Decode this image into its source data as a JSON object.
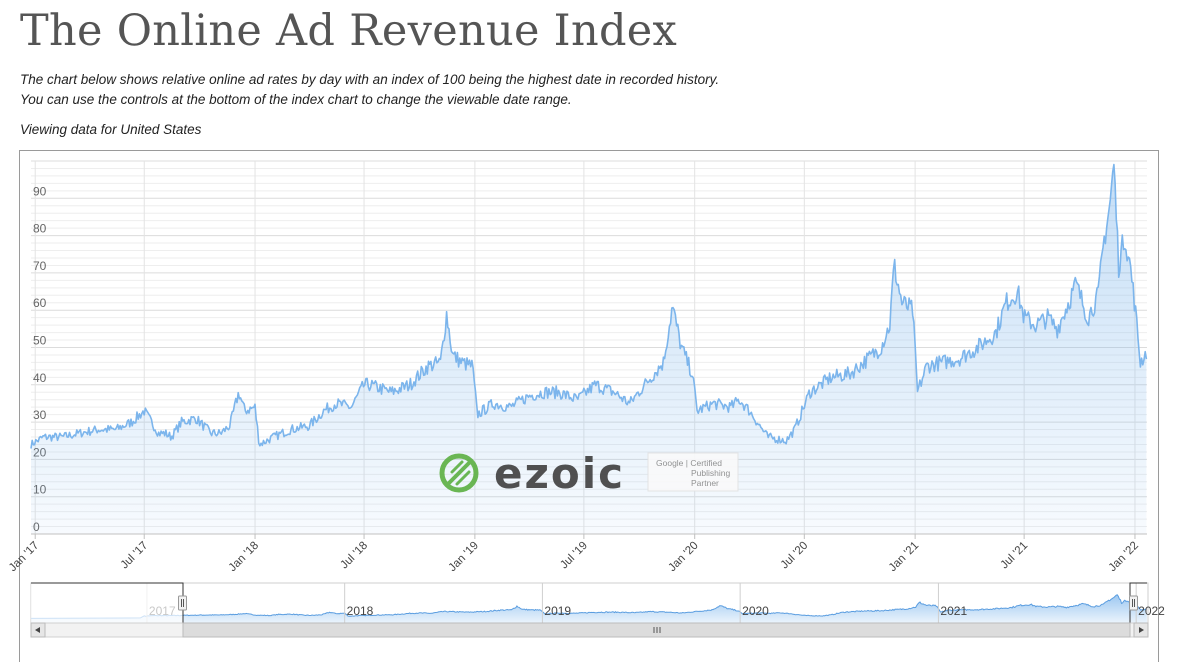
{
  "page": {
    "title": "The Online Ad Revenue Index",
    "description_line1": "The chart below shows relative online ad rates by day with an index of 100 being the highest date in recorded history.",
    "description_line2": "You can use the controls at the bottom of the index chart to change the viewable date range.",
    "viewing": "Viewing data for United States"
  },
  "watermark": {
    "logo_text": "ezoic",
    "badge_line1": "Google | Certified",
    "badge_line2": "Publishing",
    "badge_line3": "Partner"
  },
  "navigator": {
    "year_labels": [
      "2017",
      "2018",
      "2019",
      "2020",
      "2021",
      "2022"
    ],
    "left_arrow_icon": "chevron-left-icon",
    "right_arrow_icon": "chevron-right-icon",
    "grip_icon": "grip-icon"
  },
  "colors": {
    "line": "#7cb5ec",
    "grid": "#e6e6e6",
    "navigator_fill": "#a7c6ef"
  },
  "chart_data": {
    "type": "area",
    "title": "",
    "xlabel": "",
    "ylabel": "",
    "ylim": [
      0,
      100
    ],
    "yticks": [
      0,
      10,
      20,
      30,
      40,
      50,
      60,
      70,
      80,
      90
    ],
    "xticks": [
      "Jan '17",
      "Jul '17",
      "Jan '18",
      "Jul '18",
      "Jan '19",
      "Jul '19",
      "Jan '20",
      "Jul '20",
      "Jan '21",
      "Jul '21",
      "Jan '22"
    ],
    "xtick_dates": [
      "2017-01-01",
      "2017-07-01",
      "2018-01-01",
      "2018-07-01",
      "2019-01-01",
      "2019-07-01",
      "2020-01-01",
      "2020-07-01",
      "2021-01-01",
      "2021-07-01",
      "2022-01-01"
    ],
    "x_range": [
      "2016-12-25",
      "2022-01-21"
    ],
    "grid": true,
    "legend": "none",
    "series": [
      {
        "x": [
          "2016-12-25",
          "2017-01-15",
          "2017-02-15",
          "2017-03-15",
          "2017-04-15",
          "2017-05-15",
          "2017-06-10",
          "2017-07-01",
          "2017-07-25",
          "2017-08-05",
          "2017-08-15",
          "2017-09-01",
          "2017-09-25",
          "2017-10-20",
          "2017-11-05",
          "2017-11-20",
          "2017-12-05",
          "2017-12-15",
          "2018-01-01",
          "2018-01-08",
          "2018-02-01",
          "2018-03-01",
          "2018-04-01",
          "2018-04-25",
          "2018-05-15",
          "2018-06-10",
          "2018-07-01",
          "2018-07-10",
          "2018-08-15",
          "2018-09-15",
          "2018-10-15",
          "2018-11-05",
          "2018-11-15",
          "2018-11-25",
          "2018-12-10",
          "2018-12-28",
          "2019-01-05",
          "2019-02-01",
          "2019-03-01",
          "2019-04-01",
          "2019-04-25",
          "2019-05-20",
          "2019-06-20",
          "2019-07-20",
          "2019-08-20",
          "2019-09-15",
          "2019-10-15",
          "2019-11-10",
          "2019-11-25",
          "2019-12-10",
          "2019-12-28",
          "2020-01-05",
          "2020-02-01",
          "2020-03-01",
          "2020-03-15",
          "2020-04-01",
          "2020-05-01",
          "2020-06-01",
          "2020-06-15",
          "2020-07-10",
          "2020-08-15",
          "2020-09-15",
          "2020-10-15",
          "2020-11-05",
          "2020-11-20",
          "2020-11-27",
          "2020-12-10",
          "2020-12-28",
          "2021-01-05",
          "2021-01-20",
          "2021-02-15",
          "2021-03-15",
          "2021-04-15",
          "2021-05-15",
          "2021-06-01",
          "2021-06-20",
          "2021-07-01",
          "2021-07-20",
          "2021-08-10",
          "2021-08-25",
          "2021-09-10",
          "2021-09-25",
          "2021-10-15",
          "2021-11-01",
          "2021-11-10",
          "2021-11-20",
          "2021-11-27",
          "2021-12-05",
          "2021-12-15",
          "2021-12-25",
          "2022-01-01",
          "2022-01-10",
          "2022-01-21"
        ],
        "y": [
          24,
          26,
          26,
          27,
          28,
          28,
          30,
          33,
          27,
          27,
          26,
          30,
          31,
          27,
          27,
          29,
          38,
          33,
          34,
          24,
          26,
          28,
          29,
          33,
          35,
          34,
          40,
          40,
          38,
          40,
          45,
          46,
          59,
          48,
          46,
          45,
          32,
          35,
          34,
          37,
          38,
          38,
          36,
          40,
          38,
          35,
          41,
          46,
          61,
          50,
          43,
          33,
          35,
          34,
          36,
          33,
          26,
          25,
          28,
          38,
          42,
          43,
          47,
          50,
          56,
          72,
          62,
          60,
          38,
          45,
          46,
          47,
          50,
          54,
          62,
          65,
          58,
          56,
          58,
          55,
          61,
          67,
          58,
          64,
          78,
          88,
          99,
          72,
          80,
          71,
          61,
          46,
          49
        ]
      }
    ]
  }
}
